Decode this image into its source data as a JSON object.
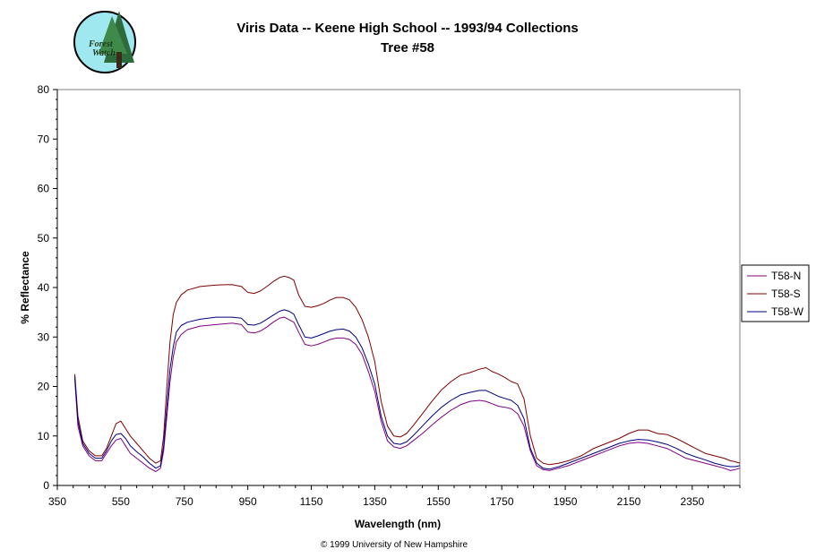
{
  "logo": {
    "line1": "Forest",
    "line2": "Watch"
  },
  "footer": {
    "copyright": "© 1999 University of New Hampshire"
  },
  "colors": {
    "T58-N": "#800080",
    "T58-S": "#800000",
    "T58-W": "#000080"
  },
  "chart_data": {
    "type": "line",
    "title": "Viris Data -- Keene High School -- 1993/94 Collections",
    "subtitle": "Tree #58",
    "xlabel": "Wavelength (nm)",
    "ylabel": "% Reflectance",
    "xlim": [
      350,
      2500
    ],
    "ylim": [
      0,
      80
    ],
    "xticks": [
      350,
      550,
      750,
      950,
      1150,
      1350,
      1550,
      1750,
      1950,
      2150,
      2350
    ],
    "yticks": [
      0,
      10,
      20,
      30,
      40,
      50,
      60,
      70,
      80
    ],
    "grid": false,
    "legend": "right",
    "series": [
      {
        "name": "T58-N",
        "x": [
          405,
          415,
          430,
          450,
          470,
          490,
          505,
          520,
          535,
          550,
          565,
          580,
          600,
          620,
          640,
          660,
          675,
          685,
          695,
          705,
          715,
          725,
          740,
          760,
          800,
          850,
          900,
          930,
          950,
          970,
          990,
          1010,
          1030,
          1050,
          1065,
          1080,
          1095,
          1110,
          1130,
          1150,
          1170,
          1190,
          1210,
          1230,
          1250,
          1270,
          1290,
          1310,
          1330,
          1350,
          1370,
          1390,
          1410,
          1430,
          1450,
          1470,
          1500,
          1530,
          1560,
          1590,
          1620,
          1650,
          1680,
          1700,
          1720,
          1740,
          1760,
          1780,
          1800,
          1820,
          1840,
          1860,
          1880,
          1900,
          1930,
          1960,
          2000,
          2040,
          2080,
          2120,
          2150,
          2180,
          2210,
          2240,
          2270,
          2300,
          2330,
          2360,
          2390,
          2420,
          2450,
          2470,
          2485,
          2500
        ],
        "values": [
          21.5,
          12,
          8,
          6,
          5,
          5,
          6.5,
          8,
          9.2,
          9.5,
          8,
          6.5,
          5.5,
          4.5,
          3.5,
          2.8,
          3.5,
          7,
          14,
          21,
          26,
          29,
          30.5,
          31.5,
          32.2,
          32.5,
          32.8,
          32.5,
          31,
          30.8,
          31.2,
          32,
          33,
          33.8,
          34,
          33.5,
          33,
          31,
          28.5,
          28.2,
          28.5,
          29,
          29.5,
          29.8,
          29.8,
          29.5,
          28.5,
          26.5,
          23,
          19,
          13,
          9,
          7.8,
          7.5,
          8,
          9,
          10.5,
          12.2,
          13.8,
          15.2,
          16.3,
          17,
          17.2,
          17,
          16.5,
          16,
          15.8,
          15.5,
          14.5,
          12,
          7,
          4,
          3.2,
          3,
          3.5,
          4,
          5,
          6,
          7,
          8,
          8.5,
          8.7,
          8.5,
          8,
          7.5,
          6.5,
          5.5,
          5,
          4.5,
          4,
          3.5,
          3,
          3.2,
          3.5
        ]
      },
      {
        "name": "T58-S",
        "x": [
          405,
          415,
          430,
          450,
          470,
          490,
          505,
          520,
          535,
          550,
          565,
          580,
          600,
          620,
          640,
          660,
          675,
          685,
          695,
          705,
          715,
          725,
          740,
          760,
          800,
          850,
          900,
          930,
          950,
          970,
          990,
          1010,
          1030,
          1050,
          1065,
          1080,
          1095,
          1110,
          1130,
          1150,
          1170,
          1190,
          1210,
          1230,
          1250,
          1270,
          1290,
          1310,
          1330,
          1350,
          1370,
          1390,
          1410,
          1430,
          1450,
          1470,
          1500,
          1530,
          1560,
          1590,
          1620,
          1650,
          1680,
          1700,
          1720,
          1740,
          1760,
          1780,
          1800,
          1820,
          1840,
          1860,
          1880,
          1900,
          1930,
          1960,
          2000,
          2040,
          2080,
          2120,
          2150,
          2180,
          2210,
          2240,
          2270,
          2300,
          2330,
          2360,
          2390,
          2420,
          2450,
          2470,
          2485,
          2500
        ],
        "values": [
          22.5,
          14,
          9,
          7,
          6,
          6,
          7.5,
          10,
          12.5,
          13,
          11.5,
          10,
          8.5,
          7,
          5.5,
          4.5,
          5,
          10,
          20,
          29,
          34.5,
          37,
          38.5,
          39.5,
          40.2,
          40.5,
          40.6,
          40.2,
          39,
          38.8,
          39.3,
          40.2,
          41.2,
          42,
          42.3,
          42,
          41.5,
          38.5,
          36.2,
          36,
          36.3,
          36.8,
          37.5,
          38,
          38,
          37.5,
          36,
          33.5,
          30,
          25,
          17,
          12,
          10,
          9.8,
          10.5,
          12,
          14.5,
          17,
          19.3,
          21,
          22.3,
          22.8,
          23.5,
          23.8,
          23,
          22.5,
          21.8,
          21,
          20.5,
          17.5,
          10,
          5.5,
          4.5,
          4.2,
          4.5,
          5,
          6,
          7.5,
          8.5,
          9.5,
          10.5,
          11.2,
          11.2,
          10.5,
          10.3,
          9.5,
          8.5,
          7.5,
          6.5,
          6,
          5.5,
          5,
          4.8,
          4.5
        ]
      },
      {
        "name": "T58-W",
        "x": [
          405,
          415,
          430,
          450,
          470,
          490,
          505,
          520,
          535,
          550,
          565,
          580,
          600,
          620,
          640,
          660,
          675,
          685,
          695,
          705,
          715,
          725,
          740,
          760,
          800,
          850,
          900,
          930,
          950,
          970,
          990,
          1010,
          1030,
          1050,
          1065,
          1080,
          1095,
          1110,
          1130,
          1150,
          1170,
          1190,
          1210,
          1230,
          1250,
          1270,
          1290,
          1310,
          1330,
          1350,
          1370,
          1390,
          1410,
          1430,
          1450,
          1470,
          1500,
          1530,
          1560,
          1590,
          1620,
          1650,
          1680,
          1700,
          1720,
          1740,
          1760,
          1780,
          1800,
          1820,
          1840,
          1860,
          1880,
          1900,
          1930,
          1960,
          2000,
          2040,
          2080,
          2120,
          2150,
          2180,
          2210,
          2240,
          2270,
          2300,
          2330,
          2360,
          2390,
          2420,
          2450,
          2470,
          2485,
          2500
        ],
        "values": [
          22,
          13,
          8.5,
          6.5,
          5.5,
          5.5,
          7,
          9,
          10.3,
          10.5,
          9.5,
          8,
          6.8,
          5.8,
          4.5,
          3.5,
          4,
          8,
          16,
          23.5,
          28,
          31,
          32.3,
          33,
          33.6,
          34,
          34,
          33.8,
          32.5,
          32.4,
          32.8,
          33.6,
          34.4,
          35.2,
          35.5,
          35.2,
          34.6,
          32.5,
          30,
          29.8,
          30.2,
          30.7,
          31.2,
          31.5,
          31.6,
          31.2,
          30,
          27.8,
          24.5,
          20.5,
          14,
          10,
          8.5,
          8.3,
          8.8,
          10,
          12,
          14,
          15.8,
          17.2,
          18.3,
          18.8,
          19.2,
          19.2,
          18.6,
          18,
          17.6,
          17.2,
          16.2,
          13.5,
          7.5,
          4.5,
          3.5,
          3.3,
          3.8,
          4.5,
          5.5,
          6.5,
          7.5,
          8.5,
          9,
          9.3,
          9.2,
          8.8,
          8.3,
          7.5,
          6.5,
          5.8,
          5.2,
          4.5,
          4,
          3.8,
          3.8,
          4
        ]
      }
    ]
  }
}
